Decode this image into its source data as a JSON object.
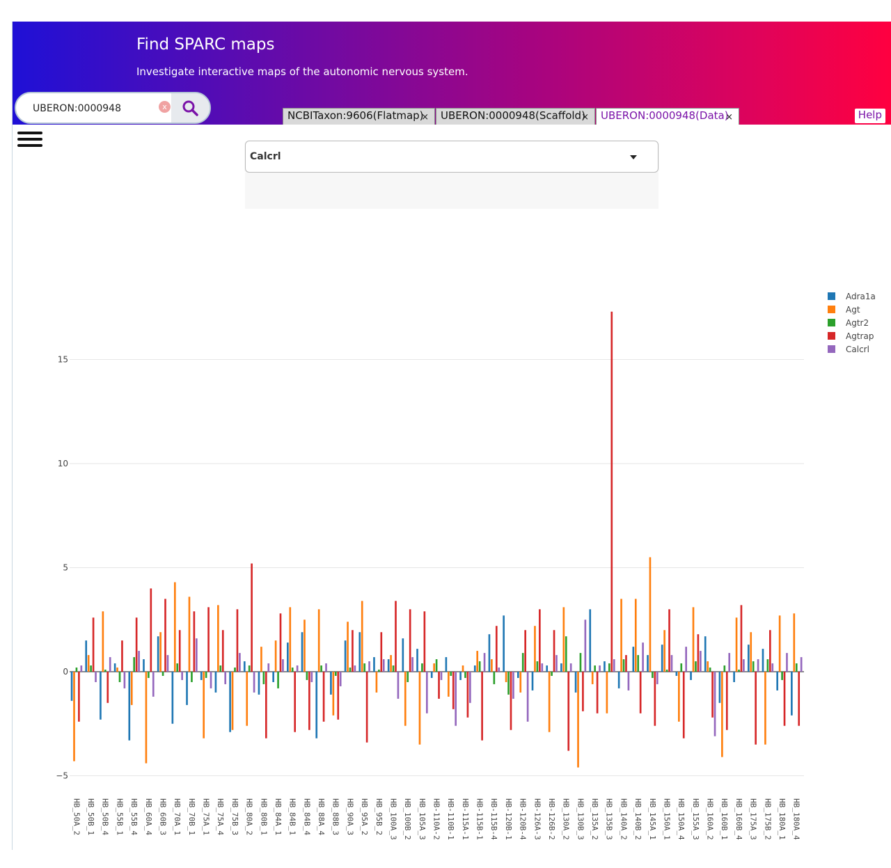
{
  "header": {
    "title": "Find SPARC maps",
    "subtitle": "Investigate interactive maps of the autonomic nervous system."
  },
  "search": {
    "value": "UBERON:0000948",
    "clear_glyph": "x"
  },
  "tabs": [
    {
      "label": "NCBITaxon:9606(Flatmap)",
      "close": "×"
    },
    {
      "label": "UBERON:0000948(Scaffold)",
      "close": "×"
    },
    {
      "label": "UBERON:0000948(Data)",
      "close": "×",
      "active": true
    }
  ],
  "help_label": "Help",
  "menu_icon": "hamburger-icon",
  "gene_select": {
    "selected": "Calcrl"
  },
  "colors": {
    "header_gradient": [
      "#1f10d6",
      "#ff0040"
    ],
    "active_tab_text": "#7a12a8"
  },
  "chart_data": {
    "type": "bar",
    "title": "",
    "xlabel": "",
    "ylabel": "",
    "ylim": [
      -5.5,
      18
    ],
    "yticks": [
      -5,
      0,
      5,
      10,
      15
    ],
    "ytick_labels": [
      "−5",
      "0",
      "5",
      "10",
      "15"
    ],
    "grid": true,
    "legend_position": "top-right",
    "categories": [
      "HB_50A_2",
      "HB_50B_1",
      "HB_50B_4",
      "HB_55B_1",
      "HB_55B_4",
      "HB_60A_4",
      "HB_60B_3",
      "HB_70A_1",
      "HB_70B_1",
      "HB_75A_1",
      "HB_75A_4",
      "HB_75B_3",
      "HB_80A_2",
      "HB_80B_1",
      "HB_84A_1",
      "HB_84B_1",
      "HB_84B_4",
      "HB_88A_4",
      "HB_88B_3",
      "HB_90A_3",
      "HB_95A_2",
      "HB_95B_2",
      "HB_100A_3",
      "HB_100B_2",
      "HB_105A_3",
      "HB-110A-2",
      "HB-110B-1",
      "HB-115A-1",
      "HB-115B-1",
      "HB-115B-4",
      "HB-120B-1",
      "HB-120B-4",
      "HB-126A-3",
      "HB-126B-2",
      "HB_130A_2",
      "HB_130B_3",
      "HB_135A_2",
      "HB_135B_3",
      "HB_140A_2",
      "HB_140B_2",
      "HB_145A_1",
      "HB_150A_1",
      "HB_150A_4",
      "HB_155A_3",
      "HB_160A_2",
      "HB_160B_1",
      "HB_160B_4",
      "HB_175A_3",
      "HB_175B_2",
      "HB_180A_1",
      "HB_180A_4"
    ],
    "series": [
      {
        "name": "Adra1a",
        "color": "#1f77b4",
        "values": [
          -1.4,
          1.5,
          -2.3,
          0.4,
          -3.3,
          0.6,
          1.7,
          -2.5,
          -1.6,
          -0.4,
          -1.0,
          -2.9,
          0.5,
          -1.1,
          -0.5,
          1.4,
          1.9,
          -3.2,
          -1.1,
          1.5,
          1.9,
          0.7,
          0.6,
          1.6,
          1.1,
          -0.3,
          0.7,
          -0.4,
          0.3,
          1.8,
          2.7,
          -0.3,
          -0.9,
          0.3,
          0.4,
          -1.0,
          3.0,
          0.5,
          -0.8,
          1.2,
          0.8,
          1.3,
          -0.2,
          -0.4,
          1.7,
          -1.5,
          -0.5,
          1.3,
          1.1,
          -0.9,
          -2.1
        ]
      },
      {
        "name": "Agt",
        "color": "#ff7f0e",
        "values": [
          -4.3,
          0.8,
          2.9,
          0.2,
          -1.6,
          -4.4,
          1.9,
          4.3,
          3.6,
          -3.2,
          3.2,
          -2.8,
          -2.6,
          1.2,
          1.5,
          3.1,
          2.5,
          3.0,
          -2.1,
          2.4,
          3.4,
          -1.0,
          0.8,
          -2.6,
          -3.5,
          0.4,
          -1.2,
          0.3,
          1.0,
          0.6,
          -0.5,
          -1.0,
          2.2,
          -2.9,
          3.1,
          -4.6,
          -0.6,
          -2.0,
          3.5,
          3.5,
          5.5,
          2.0,
          -2.4,
          3.1,
          0.5,
          -4.1,
          2.6,
          1.9,
          -3.5,
          2.7,
          2.8
        ]
      },
      {
        "name": "Agtr2",
        "color": "#2ca02c",
        "values": [
          0.2,
          0.3,
          0.1,
          -0.5,
          0.7,
          -0.3,
          -0.2,
          0.4,
          -0.5,
          -0.3,
          0.3,
          0.2,
          0.3,
          -0.6,
          -0.8,
          0.2,
          -0.4,
          0.3,
          -0.2,
          0.2,
          0.4,
          0.1,
          0.3,
          -0.5,
          0.4,
          0.6,
          -0.2,
          -0.3,
          0.5,
          -0.6,
          -1.1,
          0.9,
          0.5,
          -0.2,
          1.7,
          0.9,
          0.3,
          0.4,
          0.6,
          0.8,
          -0.3,
          0.1,
          0.4,
          0.5,
          0.2,
          0.3,
          0.1,
          0.5,
          0.6,
          -0.4,
          0.4
        ]
      },
      {
        "name": "Agtrap",
        "color": "#d62728",
        "values": [
          -2.4,
          2.6,
          -1.5,
          1.5,
          2.6,
          4.0,
          3.5,
          2.0,
          2.9,
          3.1,
          2.0,
          3.0,
          5.2,
          -3.2,
          2.8,
          -2.9,
          -2.8,
          -2.4,
          -2.3,
          2.0,
          -3.4,
          1.9,
          3.4,
          3.0,
          2.9,
          -1.3,
          -1.8,
          -2.2,
          -3.3,
          2.2,
          -2.8,
          2.0,
          3.0,
          2.0,
          -3.8,
          -1.9,
          -2.0,
          17.3,
          0.8,
          -2.0,
          -2.6,
          3.0,
          -3.2,
          1.8,
          -2.2,
          -2.8,
          3.2,
          -3.5,
          2.0,
          -2.6,
          -2.6
        ]
      },
      {
        "name": "Calcrl",
        "color": "#9467bd",
        "values": [
          0.3,
          -0.5,
          0.7,
          -0.8,
          1.0,
          -1.2,
          0.8,
          -0.4,
          1.6,
          -0.8,
          -0.6,
          0.9,
          -1.0,
          0.4,
          0.6,
          0.3,
          -0.5,
          0.4,
          -0.7,
          0.3,
          0.5,
          0.6,
          -1.3,
          0.7,
          -2.0,
          -0.4,
          -2.6,
          -1.5,
          0.9,
          0.2,
          -1.3,
          -2.4,
          0.4,
          0.8,
          0.4,
          2.5,
          0.3,
          0.6,
          -0.9,
          1.4,
          -0.6,
          0.8,
          1.2,
          1.0,
          -3.1,
          0.9,
          0.6,
          0.6,
          0.4,
          0.9,
          0.7
        ]
      }
    ]
  }
}
